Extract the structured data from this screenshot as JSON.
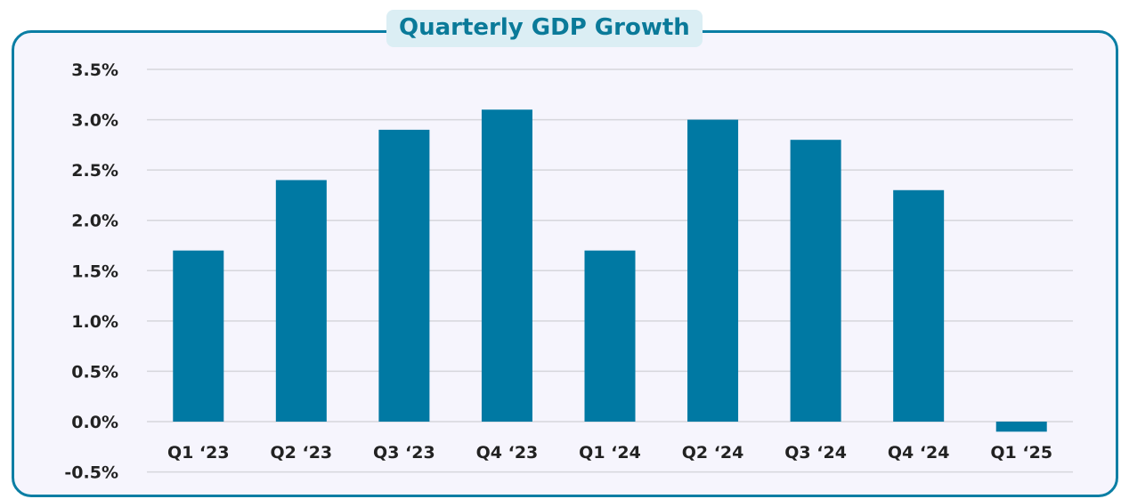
{
  "chart_data": {
    "type": "bar",
    "title": "Quarterly GDP Growth",
    "categories": [
      "Q1 ‘23",
      "Q2 ‘23",
      "Q3 ‘23",
      "Q4 ‘23",
      "Q1 ‘24",
      "Q2 ‘24",
      "Q3 ‘24",
      "Q4 ‘24",
      "Q1 ‘25"
    ],
    "values": [
      1.7,
      2.4,
      2.9,
      3.1,
      1.7,
      3.0,
      2.8,
      2.3,
      -0.1
    ],
    "ylim": [
      -0.5,
      3.5
    ],
    "yticks": [
      -0.5,
      0.0,
      0.5,
      1.0,
      1.5,
      2.0,
      2.5,
      3.0,
      3.5
    ],
    "ytick_labels": [
      "-0.5%",
      "0.0%",
      "0.5%",
      "1.0%",
      "1.5%",
      "2.0%",
      "2.5%",
      "3.0%",
      "3.5%"
    ],
    "xlabel": "",
    "ylabel": "",
    "grid": true,
    "legend": "none",
    "colors": {
      "bar": "#0079a3",
      "grid": "#d6d6dc",
      "border": "#0a7ea4",
      "title": "#0a7a99"
    }
  }
}
